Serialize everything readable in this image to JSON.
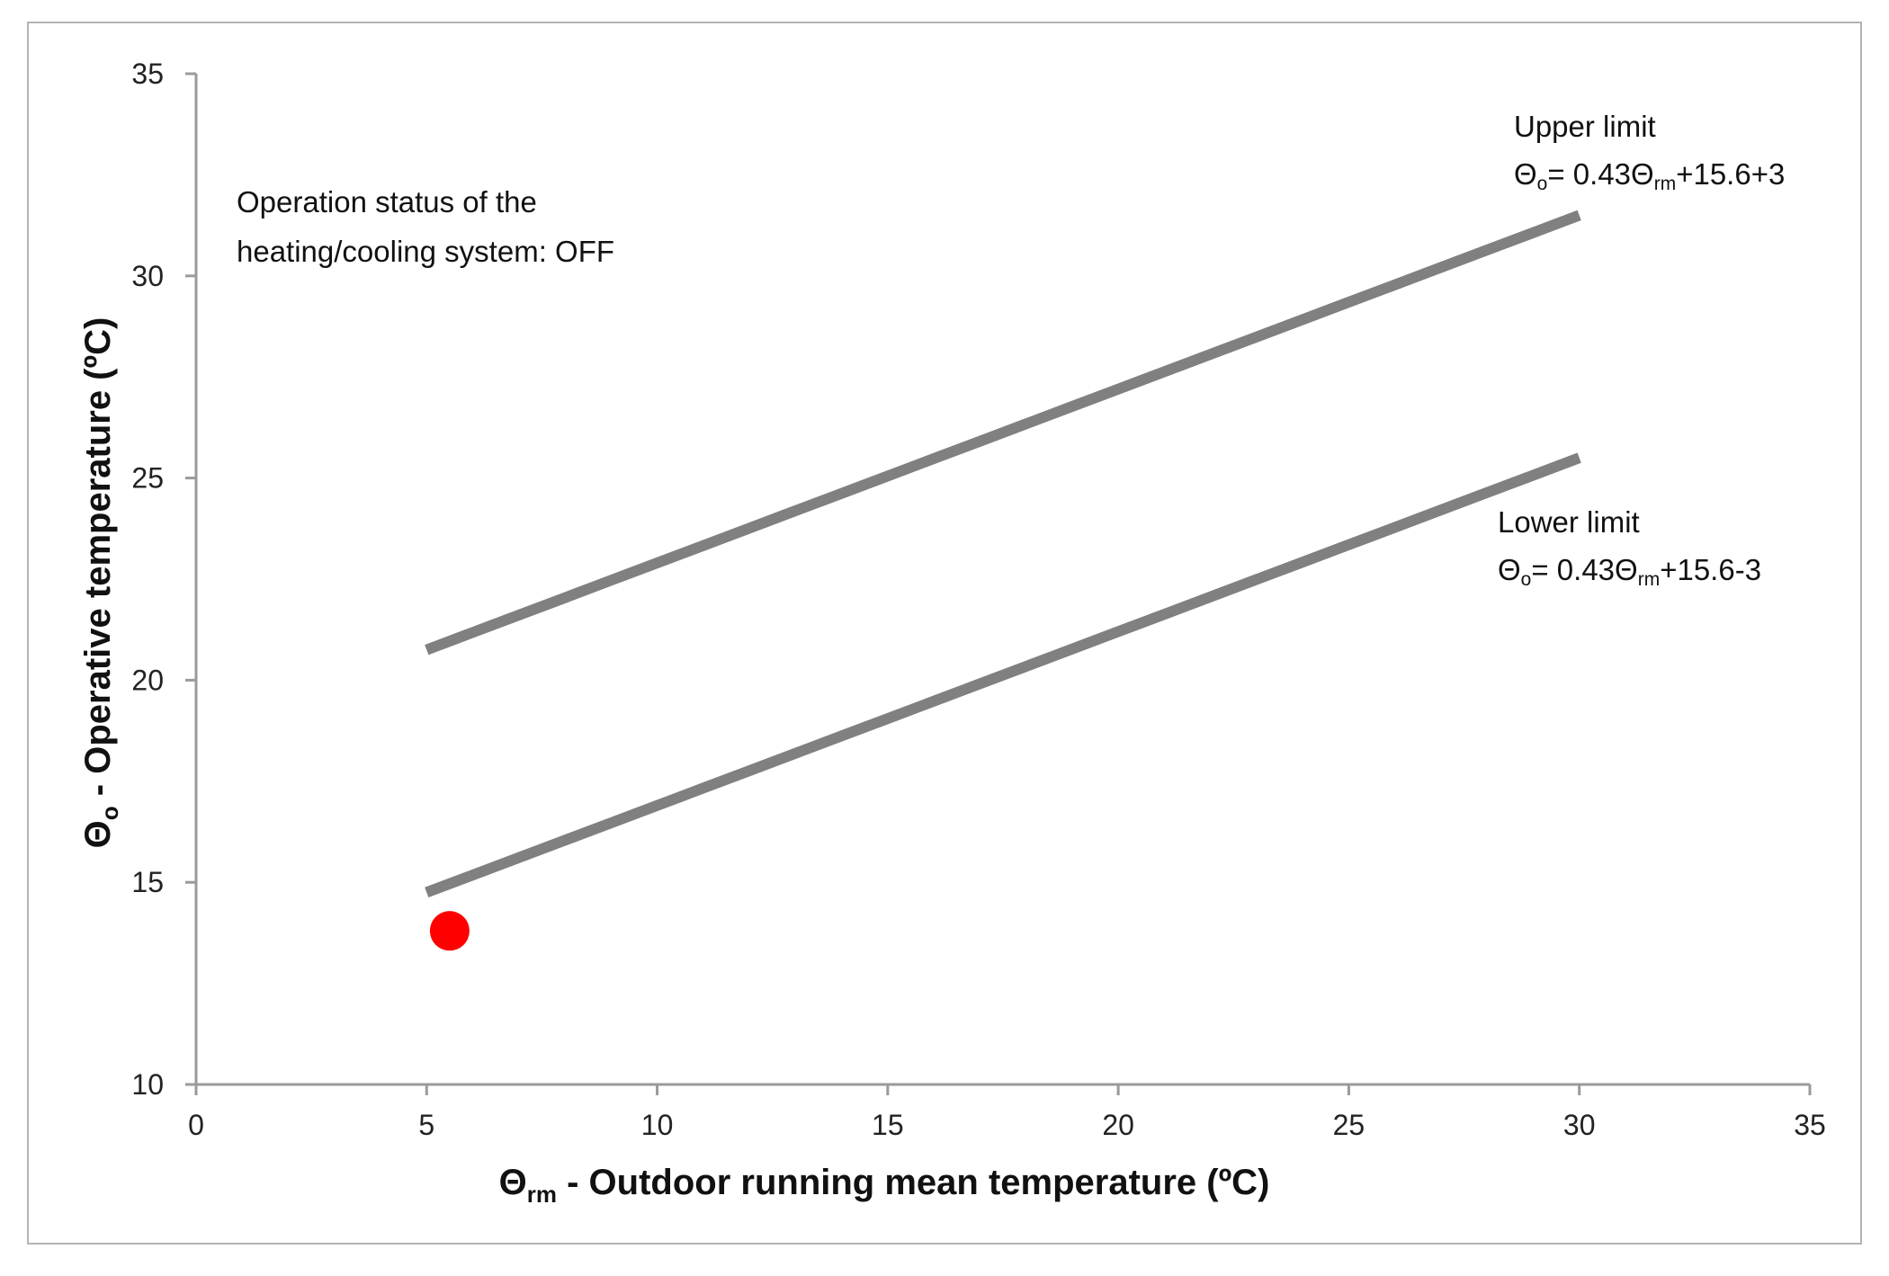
{
  "chart_data": {
    "type": "line",
    "xlabel": {
      "symbol": "Θ",
      "sub": "rm",
      "text": " - Outdoor running mean temperature (ºC)"
    },
    "ylabel": {
      "symbol": "Θ",
      "sub": "o",
      "text": " - Operative temperature (ºC)"
    },
    "xlim": [
      0,
      35
    ],
    "ylim": [
      10,
      35
    ],
    "xticks": [
      0,
      5,
      10,
      15,
      20,
      25,
      30,
      35
    ],
    "yticks": [
      10,
      15,
      20,
      25,
      30,
      35
    ],
    "grid": false,
    "series": [
      {
        "name": "Upper limit",
        "color": "#808080",
        "points": [
          [
            5,
            20.75
          ],
          [
            6,
            21.18
          ],
          [
            7,
            21.61
          ],
          [
            8,
            22.04
          ],
          [
            9,
            22.47
          ],
          [
            10,
            22.9
          ],
          [
            11,
            23.33
          ],
          [
            12,
            23.76
          ],
          [
            13,
            24.19
          ],
          [
            14,
            24.62
          ],
          [
            15,
            25.05
          ],
          [
            16,
            25.48
          ],
          [
            17,
            25.91
          ],
          [
            18,
            26.34
          ],
          [
            19,
            26.77
          ],
          [
            20,
            27.2
          ],
          [
            21,
            27.63
          ],
          [
            22,
            28.06
          ],
          [
            23,
            28.49
          ],
          [
            24,
            28.92
          ],
          [
            25,
            29.35
          ],
          [
            26,
            29.78
          ],
          [
            27,
            30.21
          ],
          [
            28,
            30.64
          ],
          [
            29,
            31.07
          ],
          [
            30,
            31.5
          ]
        ]
      },
      {
        "name": "Lower limit",
        "color": "#808080",
        "points": [
          [
            5,
            14.75
          ],
          [
            6,
            15.18
          ],
          [
            7,
            15.61
          ],
          [
            8,
            16.04
          ],
          [
            9,
            16.47
          ],
          [
            10,
            16.9
          ],
          [
            11,
            17.33
          ],
          [
            12,
            17.76
          ],
          [
            13,
            18.19
          ],
          [
            14,
            18.62
          ],
          [
            15,
            19.05
          ],
          [
            16,
            19.48
          ],
          [
            17,
            19.91
          ],
          [
            18,
            20.34
          ],
          [
            19,
            20.77
          ],
          [
            20,
            21.2
          ],
          [
            21,
            21.63
          ],
          [
            22,
            22.06
          ],
          [
            23,
            22.49
          ],
          [
            24,
            22.92
          ],
          [
            25,
            23.35
          ],
          [
            26,
            23.78
          ],
          [
            27,
            24.21
          ],
          [
            28,
            24.64
          ],
          [
            29,
            25.07
          ],
          [
            30,
            25.5
          ]
        ]
      }
    ],
    "point": {
      "x": 5.5,
      "y": 13.8,
      "color": "#ff0000"
    },
    "annotations": {
      "status_line1": "Operation status of the",
      "status_line2": "heating/cooling system: OFF",
      "upper_title": "Upper limit",
      "upper_eq": {
        "a": "Θ",
        "a_sub": "o",
        "b": "= 0.43Θ",
        "b_sub": "rm",
        "c": "+15.6+3"
      },
      "lower_title": "Lower limit",
      "lower_eq": {
        "a": "Θ",
        "a_sub": "o",
        "b": "= 0.43Θ",
        "b_sub": "rm",
        "c": "+15.6-3"
      }
    }
  }
}
